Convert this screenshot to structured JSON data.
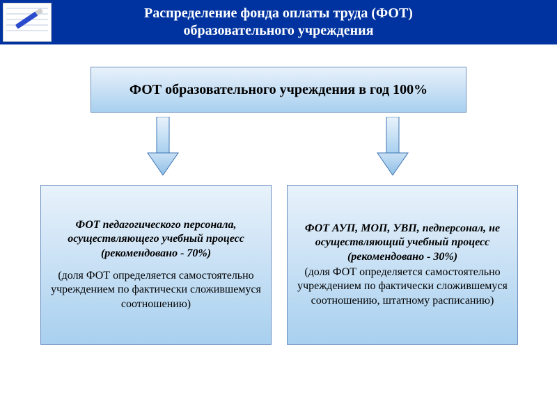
{
  "diagram": {
    "type": "flowchart",
    "background_color": "#ffffff",
    "header": {
      "bar_color": "#0033a0",
      "title_color": "#ffffff",
      "title_fontsize": 20,
      "line1": "Распределение фонда оплаты труда (ФОТ)",
      "line2": "образовательного учреждения"
    },
    "top_node": {
      "text": "ФОТ образовательного учреждения в год 100%",
      "fontsize": 20,
      "border_color": "#6b8fbf",
      "gradient": [
        "#e8f2fb",
        "#cfe4f6",
        "#a8d0ef"
      ]
    },
    "arrow": {
      "stem_gradient": [
        "#eaf3fb",
        "#a8d0ef"
      ],
      "head_gradient": [
        "#c9e1f5",
        "#8fbfe6"
      ],
      "stroke": "#3c74b3"
    },
    "left_node": {
      "bold_lines": "ФОТ педагогического персонала, осуществляющего учебный процесс\n(рекомендовано - 70%)",
      "reg_lines": "(доля ФОТ определяется самостоятельно учреждением по фактически сложившемуся соотношению)",
      "fontsize": 16,
      "border_color": "#6b8fbf"
    },
    "right_node": {
      "bold_lines": "ФОТ АУП, МОП, УВП, педперсонал, не осуществляющий учебный процесс\n(рекомендовано - 30%)",
      "reg_lines": "(доля ФОТ определяется самостоятельно учреждением по фактически сложившемуся соотношению, штатному расписанию)",
      "fontsize": 16,
      "border_color": "#6b8fbf"
    }
  }
}
